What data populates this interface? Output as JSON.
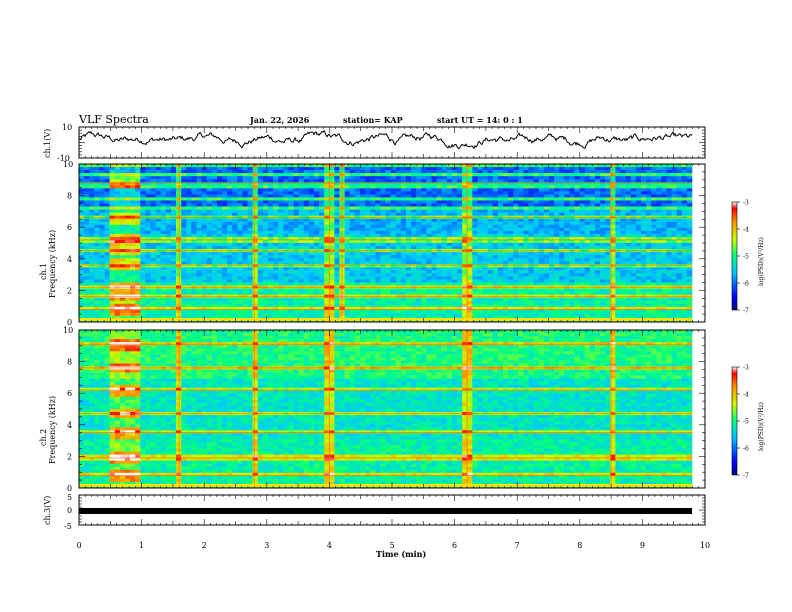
{
  "header": {
    "title": "VLF Spectra",
    "date": "Jan. 22, 2026",
    "station": "station= KAP",
    "start": "start  UT =  14: 0  : 1"
  },
  "chart_data": [
    {
      "id": "ch1-waveform",
      "type": "line",
      "ylabel": "ch.1(V)",
      "ylim": [
        -10,
        10
      ],
      "yticks": [
        "10",
        "-10"
      ],
      "xlim": [
        0,
        10
      ],
      "description_values": "noisy waveform oscillating roughly between -3 and 7 V"
    },
    {
      "id": "ch1-spectrogram",
      "type": "heatmap",
      "ylabel": "ch.1\nFrequency  (kHz)",
      "ylim": [
        0,
        10
      ],
      "yticks": [
        "0",
        "2",
        "4",
        "6",
        "8",
        "10"
      ],
      "xlim": [
        0,
        10
      ],
      "strong_bands_khz": [
        0.8,
        1.6,
        2.2,
        3.6,
        4.5,
        5.2,
        6.6,
        8.8
      ],
      "burst_interval_min": [
        0.45,
        1.0
      ],
      "vertical_spikes_min": [
        1.6,
        2.8,
        4.0,
        4.2,
        6.2,
        8.5
      ]
    },
    {
      "id": "ch2-spectrogram",
      "type": "heatmap",
      "ylabel": "ch.2\nFrequency  (kHz)",
      "ylim": [
        0,
        10
      ],
      "yticks": [
        "0",
        "2",
        "4",
        "6",
        "8",
        "10"
      ],
      "xlim": [
        0,
        10
      ],
      "strong_bands_khz": [
        0.8,
        1.9,
        3.5,
        4.7,
        6.2,
        7.6,
        9.1
      ],
      "burst_interval_min": [
        0.45,
        1.0
      ],
      "vertical_spikes_min": [
        1.6,
        2.8,
        4.0,
        6.2,
        8.5
      ]
    },
    {
      "id": "ch3-waveform",
      "type": "line",
      "ylabel": "ch.3(V)",
      "ylim": [
        -5,
        5
      ],
      "yticks": [
        "5",
        "0",
        "-5"
      ],
      "xlim": [
        0,
        10
      ],
      "xticks": [
        "0",
        "1",
        "2",
        "3",
        "4",
        "5",
        "6",
        "7",
        "8",
        "9",
        "10"
      ],
      "xlabel": "Time  (min)",
      "constant_value": 0
    }
  ],
  "colorbars": [
    {
      "id": "colorbar-1",
      "label": "log(PSD)(V²/Hz)",
      "range": [
        -7,
        -3
      ],
      "ticks": [
        "-3",
        "-4",
        "-5",
        "-6",
        "-7"
      ]
    },
    {
      "id": "colorbar-2",
      "label": "log(PSD)(V²/Hz)",
      "range": [
        -7,
        -3
      ],
      "ticks": [
        "-3",
        "-4",
        "-5",
        "-6",
        "-7"
      ]
    }
  ]
}
